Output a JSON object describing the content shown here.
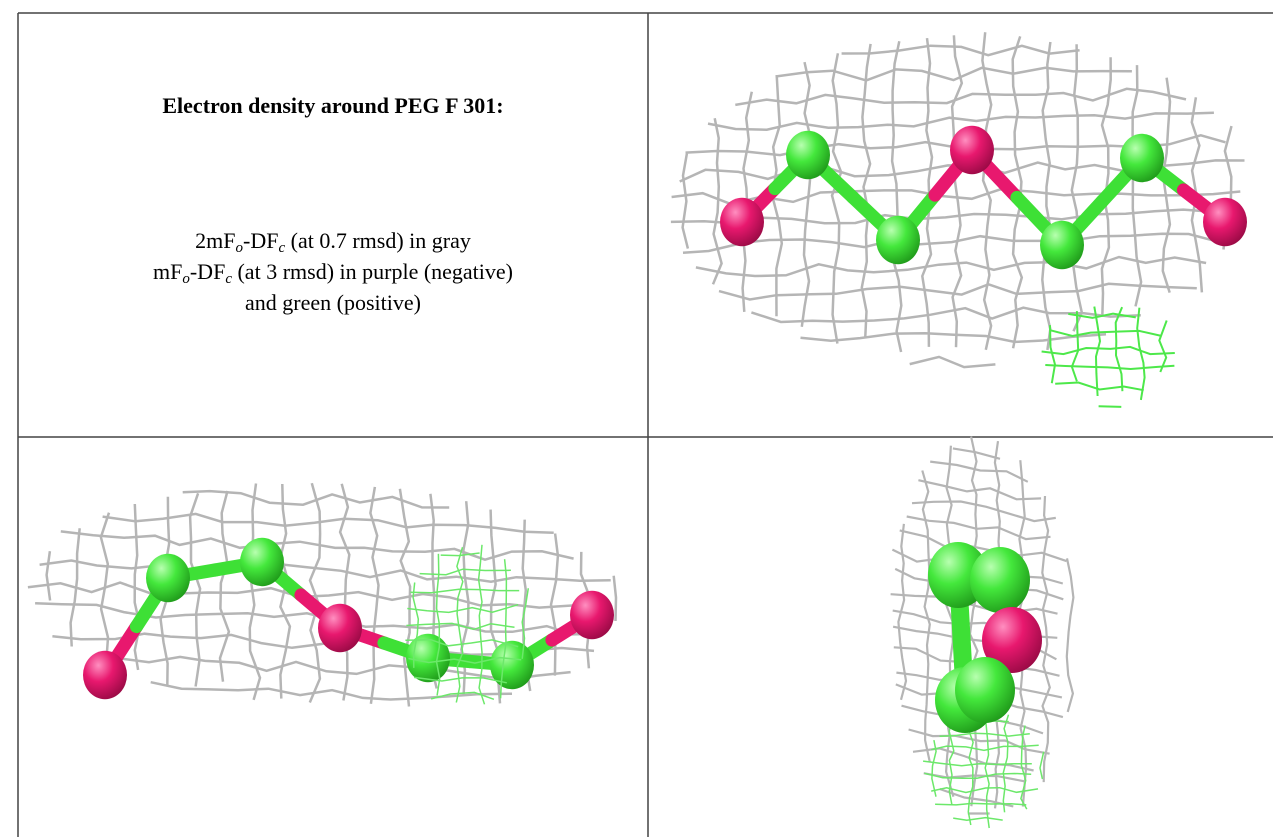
{
  "caption": {
    "title": "Electron density around PEG F 301:",
    "lines": [
      [
        "2mF",
        "o",
        "-DF",
        "c",
        " (at 0.7 rmsd) in gray"
      ],
      [
        "mF",
        "o",
        "-DF",
        "c",
        " (at 3 rmsd) in purple (negative)"
      ],
      [
        "and green (positive)"
      ]
    ]
  }
}
